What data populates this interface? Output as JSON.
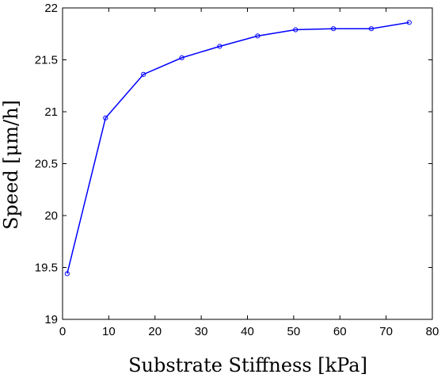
{
  "chart_data": {
    "type": "line",
    "title": "",
    "xlabel": "Substrate Stiffness [kPa]",
    "ylabel": "Speed [μm/h]",
    "xlim": [
      0,
      80
    ],
    "ylim": [
      19,
      22
    ],
    "xticks": [
      0,
      10,
      20,
      30,
      40,
      50,
      60,
      70,
      80
    ],
    "xtick_labels": [
      "0",
      "10",
      "20",
      "30",
      "40",
      "50",
      "60",
      "70",
      "80"
    ],
    "yticks": [
      19,
      19.5,
      20,
      20.5,
      21,
      21.5,
      22
    ],
    "ytick_labels": [
      "19",
      "19.5",
      "20",
      "20.5",
      "21",
      "21.5",
      "22"
    ],
    "grid": false,
    "legend": "none",
    "series": [
      {
        "x": [
          1,
          9.3,
          17.5,
          25.8,
          34,
          42.2,
          50.4,
          58.6,
          66.8,
          75
        ],
        "y": [
          19.44,
          20.94,
          21.36,
          21.52,
          21.63,
          21.73,
          21.79,
          21.8,
          21.8,
          21.86
        ],
        "color": "#0000ff",
        "marker": "open-circle"
      }
    ]
  }
}
